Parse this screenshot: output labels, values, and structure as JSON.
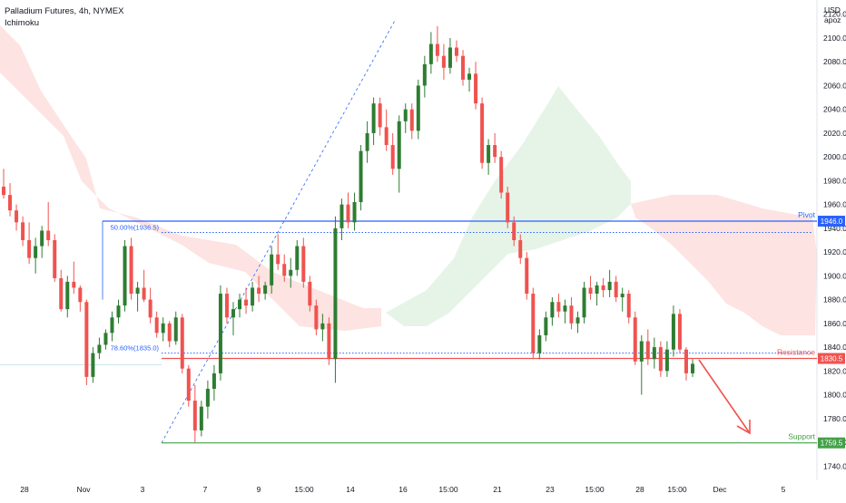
{
  "legend": {
    "title": "Palladium Futures, 4h, NYMEX",
    "indicator": "Ichimoku"
  },
  "price_axis": {
    "currency": "USD",
    "mode": "apoz"
  },
  "colors": {
    "up": "#2e7d32",
    "down": "#ef5350",
    "cloud_bear": "#fde0de",
    "cloud_bull": "#e3f3e6",
    "pivot": "#2962ff",
    "resistance": "#ef5350",
    "support": "#43a047",
    "fib": "#2962ff"
  },
  "chart_data": {
    "type": "candlestick",
    "title": "Palladium Futures, 4h, NYMEX",
    "ylim": [
      1728,
      2132
    ],
    "y_ticks": [
      1740,
      1760,
      1780,
      1800,
      1820,
      1840,
      1860,
      1880,
      1900,
      1920,
      1940,
      1960,
      1980,
      2000,
      2020,
      2040,
      2060,
      2080,
      2100,
      2120
    ],
    "x_ticks": [
      "28",
      "Nov",
      "3",
      "7",
      "9",
      "15:00",
      "14",
      "16",
      "15:00",
      "21",
      "23",
      "15:00",
      "28",
      "15:00",
      "Dec",
      "5"
    ],
    "levels": [
      {
        "name": "Pivot",
        "value": 1946.0,
        "label": "1946.0"
      },
      {
        "name": "Resistance",
        "value": 1830.5,
        "label": "1830.5"
      },
      {
        "name": "Support",
        "value": 1759.5,
        "label": "1759.5"
      }
    ],
    "fibonacci": [
      {
        "label": "50.00%(1936.5)",
        "value": 1936.5
      },
      {
        "label": "78.60%(1835.0)",
        "value": 1835.0
      }
    ],
    "ohlc": [
      [
        1975,
        1990,
        1965,
        1968
      ],
      [
        1968,
        1978,
        1950,
        1955
      ],
      [
        1955,
        1960,
        1938,
        1945
      ],
      [
        1945,
        1950,
        1925,
        1930
      ],
      [
        1930,
        1945,
        1910,
        1915
      ],
      [
        1915,
        1932,
        1902,
        1925
      ],
      [
        1925,
        1942,
        1915,
        1938
      ],
      [
        1938,
        1962,
        1925,
        1930
      ],
      [
        1930,
        1935,
        1895,
        1898
      ],
      [
        1898,
        1905,
        1870,
        1872
      ],
      [
        1872,
        1900,
        1865,
        1895
      ],
      [
        1895,
        1912,
        1885,
        1890
      ],
      [
        1890,
        1892,
        1870,
        1878
      ],
      [
        1878,
        1880,
        1808,
        1815
      ],
      [
        1815,
        1840,
        1810,
        1835
      ],
      [
        1835,
        1848,
        1830,
        1842
      ],
      [
        1842,
        1855,
        1838,
        1852
      ],
      [
        1852,
        1870,
        1845,
        1865
      ],
      [
        1865,
        1880,
        1860,
        1875
      ],
      [
        1875,
        1930,
        1870,
        1925
      ],
      [
        1925,
        1932,
        1880,
        1885
      ],
      [
        1885,
        1895,
        1870,
        1890
      ],
      [
        1890,
        1905,
        1878,
        1880
      ],
      [
        1880,
        1890,
        1860,
        1865
      ],
      [
        1865,
        1870,
        1848,
        1852
      ],
      [
        1852,
        1865,
        1845,
        1860
      ],
      [
        1860,
        1862,
        1840,
        1845
      ],
      [
        1845,
        1870,
        1842,
        1865
      ],
      [
        1865,
        1868,
        1818,
        1822
      ],
      [
        1822,
        1825,
        1790,
        1795
      ],
      [
        1795,
        1808,
        1760,
        1770
      ],
      [
        1770,
        1795,
        1765,
        1790
      ],
      [
        1790,
        1812,
        1780,
        1805
      ],
      [
        1805,
        1825,
        1795,
        1818
      ],
      [
        1818,
        1892,
        1812,
        1885
      ],
      [
        1885,
        1890,
        1860,
        1865
      ],
      [
        1865,
        1878,
        1850,
        1872
      ],
      [
        1872,
        1885,
        1865,
        1880
      ],
      [
        1880,
        1890,
        1868,
        1875
      ],
      [
        1875,
        1895,
        1870,
        1890
      ],
      [
        1890,
        1900,
        1878,
        1885
      ],
      [
        1885,
        1895,
        1880,
        1892
      ],
      [
        1892,
        1925,
        1885,
        1918
      ],
      [
        1918,
        1935,
        1905,
        1910
      ],
      [
        1910,
        1918,
        1895,
        1900
      ],
      [
        1900,
        1915,
        1890,
        1905
      ],
      [
        1905,
        1930,
        1900,
        1925
      ],
      [
        1925,
        1932,
        1890,
        1895
      ],
      [
        1895,
        1900,
        1870,
        1875
      ],
      [
        1875,
        1880,
        1850,
        1855
      ],
      [
        1855,
        1868,
        1845,
        1860
      ],
      [
        1860,
        1865,
        1825,
        1830
      ],
      [
        1830,
        1950,
        1810,
        1940
      ],
      [
        1940,
        1965,
        1930,
        1960
      ],
      [
        1960,
        1970,
        1940,
        1945
      ],
      [
        1945,
        1970,
        1938,
        1962
      ],
      [
        1962,
        2010,
        1955,
        2005
      ],
      [
        2005,
        2030,
        1995,
        2020
      ],
      [
        2020,
        2050,
        2010,
        2045
      ],
      [
        2045,
        2050,
        2018,
        2025
      ],
      [
        2025,
        2040,
        2005,
        2010
      ],
      [
        2010,
        2020,
        1985,
        1990
      ],
      [
        1990,
        2035,
        1970,
        2030
      ],
      [
        2030,
        2045,
        2020,
        2040
      ],
      [
        2040,
        2045,
        2015,
        2022
      ],
      [
        2022,
        2065,
        2015,
        2060
      ],
      [
        2060,
        2085,
        2050,
        2078
      ],
      [
        2078,
        2105,
        2070,
        2095
      ],
      [
        2095,
        2110,
        2080,
        2085
      ],
      [
        2085,
        2095,
        2065,
        2075
      ],
      [
        2075,
        2100,
        2070,
        2092
      ],
      [
        2092,
        2098,
        2080,
        2085
      ],
      [
        2085,
        2090,
        2060,
        2065
      ],
      [
        2065,
        2075,
        2055,
        2070
      ],
      [
        2070,
        2080,
        2040,
        2045
      ],
      [
        2045,
        2050,
        1990,
        1995
      ],
      [
        1995,
        2015,
        1985,
        2010
      ],
      [
        2010,
        2020,
        1995,
        2000
      ],
      [
        2000,
        2005,
        1965,
        1970
      ],
      [
        1970,
        1975,
        1940,
        1945
      ],
      [
        1945,
        1950,
        1925,
        1930
      ],
      [
        1930,
        1935,
        1910,
        1915
      ],
      [
        1915,
        1920,
        1880,
        1885
      ],
      [
        1885,
        1890,
        1830,
        1835
      ],
      [
        1835,
        1855,
        1830,
        1850
      ],
      [
        1850,
        1870,
        1845,
        1865
      ],
      [
        1865,
        1882,
        1858,
        1878
      ],
      [
        1878,
        1885,
        1865,
        1870
      ],
      [
        1870,
        1880,
        1860,
        1875
      ],
      [
        1875,
        1882,
        1855,
        1860
      ],
      [
        1860,
        1870,
        1852,
        1865
      ],
      [
        1865,
        1895,
        1860,
        1890
      ],
      [
        1890,
        1900,
        1880,
        1885
      ],
      [
        1885,
        1895,
        1875,
        1892
      ],
      [
        1892,
        1898,
        1882,
        1888
      ],
      [
        1888,
        1905,
        1882,
        1895
      ],
      [
        1895,
        1900,
        1878,
        1882
      ],
      [
        1882,
        1890,
        1870,
        1885
      ],
      [
        1885,
        1888,
        1860,
        1865
      ],
      [
        1865,
        1870,
        1825,
        1828
      ],
      [
        1828,
        1850,
        1800,
        1845
      ],
      [
        1845,
        1855,
        1825,
        1830
      ],
      [
        1830,
        1848,
        1822,
        1840
      ],
      [
        1840,
        1845,
        1815,
        1820
      ],
      [
        1820,
        1845,
        1815,
        1838
      ],
      [
        1838,
        1875,
        1832,
        1868
      ],
      [
        1868,
        1872,
        1835,
        1838
      ],
      [
        1838,
        1840,
        1812,
        1818
      ],
      [
        1818,
        1830,
        1815,
        1826
      ]
    ]
  }
}
